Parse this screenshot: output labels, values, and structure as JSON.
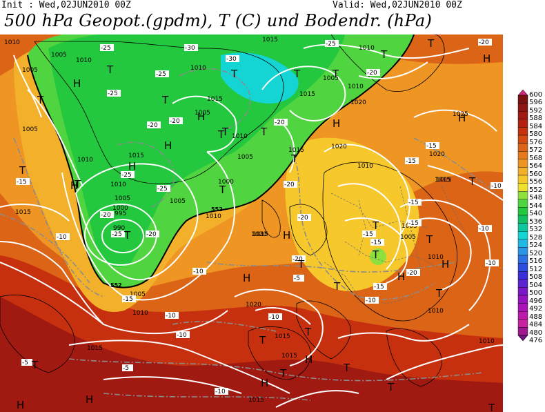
{
  "header": {
    "init_text": "Init : Wed,02JUN2010 00Z",
    "valid_text": "Valid: Wed,02JUN2010 00Z",
    "title": "500 hPa Geopot.(gpdm), T (C) und Bodendr. (hPa)"
  },
  "colorbar": {
    "levels": [
      "600",
      "596",
      "592",
      "588",
      "584",
      "580",
      "576",
      "572",
      "568",
      "564",
      "560",
      "556",
      "552",
      "548",
      "544",
      "540",
      "536",
      "532",
      "528",
      "524",
      "520",
      "516",
      "512",
      "508",
      "504",
      "500",
      "496",
      "492",
      "488",
      "484",
      "480",
      "476"
    ],
    "colors": [
      "#cc2a7a",
      "#7a1010",
      "#8e1414",
      "#a11a12",
      "#b52010",
      "#c6300e",
      "#d34a10",
      "#dc6416",
      "#e57b1c",
      "#ee9524",
      "#f3b02a",
      "#f6c82c",
      "#f0e030",
      "#8ee03c",
      "#50d440",
      "#24c83e",
      "#12c064",
      "#10c6a0",
      "#14d4d4",
      "#20b8e4",
      "#2a96e6",
      "#2c70e4",
      "#2c4ee0",
      "#3a2ed8",
      "#5a22d0",
      "#7a18c8",
      "#9614c0",
      "#aa14b6",
      "#bc1aaa",
      "#c822a0",
      "#a01890",
      "#70107a"
    ]
  },
  "map": {
    "pressure_labels": [
      "1010",
      "1005",
      "1010",
      "1005",
      "1005",
      "1015",
      "1010",
      "1005",
      "1010",
      "1015",
      "1015",
      "1005",
      "1010",
      "1020",
      "1020",
      "1010",
      "1015",
      "1020",
      "1025",
      "1015",
      "1005",
      "1015",
      "1010",
      "1000",
      "995",
      "990",
      "1000",
      "1005",
      "1015",
      "1010",
      "1010",
      "1020",
      "1005",
      "1005",
      "1015",
      "1010",
      "1005",
      "1010",
      "1005",
      "1020",
      "1015",
      "1015",
      "1015",
      "1010",
      "1010",
      "1015",
      "1015",
      "1010"
    ],
    "temp_labels": [
      "-25",
      "-30",
      "-25",
      "-30",
      "-25",
      "-20",
      "-25",
      "-20",
      "-20",
      "-20",
      "-20",
      "-25",
      "-25",
      "-20",
      "-20",
      "-25",
      "-20",
      "-15",
      "-15",
      "-10",
      "-15",
      "-20",
      "-15",
      "-15",
      "-10",
      "-20",
      "-15",
      "-10",
      "-15",
      "-20",
      "-15",
      "-15",
      "-10",
      "-10",
      "-10",
      "-10",
      "-10",
      "-10",
      "-5",
      "-5",
      "-5",
      "-10"
    ],
    "low_markers": [
      "T",
      "T",
      "T",
      "T",
      "T",
      "T",
      "T",
      "T",
      "T",
      "T",
      "T",
      "T",
      "T",
      "T",
      "T",
      "T",
      "T",
      "T",
      "T",
      "T",
      "T",
      "T",
      "T",
      "T",
      "T",
      "T",
      "T",
      "T",
      "T",
      "T"
    ],
    "high_markers": [
      "H",
      "H",
      "H",
      "H",
      "H",
      "H",
      "H",
      "H",
      "H",
      "H",
      "H",
      "H",
      "H",
      "H",
      "H",
      "H"
    ],
    "geopotential_labels": [
      "552",
      "552"
    ]
  }
}
